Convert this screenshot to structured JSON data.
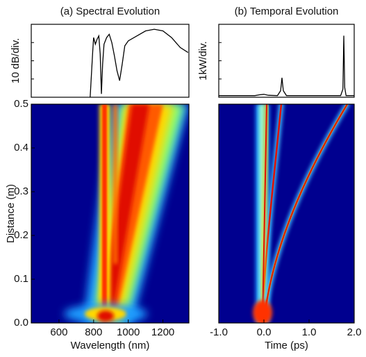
{
  "chart_data": [
    {
      "type": "line",
      "title": "(a) Spectral Evolution",
      "ylabel": "10 dB/div.",
      "x": [
        780,
        795,
        800,
        810,
        820,
        830,
        838,
        845,
        852,
        860,
        875,
        890,
        905,
        920,
        935,
        950,
        965,
        980,
        1000,
        1050,
        1100,
        1150,
        1200,
        1250,
        1300,
        1345
      ],
      "series": [
        {
          "name": "spectrum",
          "color": "#000000",
          "values": [
            -40,
            -12,
            -4,
            -8,
            -5,
            -3,
            -14,
            -38,
            -20,
            -8,
            -4,
            -2,
            -7,
            -15,
            -24,
            -30,
            -20,
            -9,
            -6,
            -3,
            0,
            1,
            0,
            -4,
            -10,
            -13
          ]
        }
      ],
      "xlim": [
        440,
        1350
      ],
      "ylim": [
        -40,
        4
      ]
    },
    {
      "type": "heatmap",
      "xlabel": "Wavelength (nm)",
      "ylabel": "Distance (m)",
      "xlim": [
        440,
        1350
      ],
      "xticks": [
        600,
        800,
        1000,
        1200
      ],
      "ylim": [
        0,
        0.5
      ],
      "yticks": [
        {
          "value": 0,
          "label": "0.0"
        },
        0.1,
        0.2,
        0.3,
        0.4,
        0.5
      ]
    },
    {
      "type": "line",
      "title": "(b) Temporal Evolution",
      "ylabel": "1kW/div.",
      "x": [
        -1,
        -0.2,
        -0.1,
        0,
        0.1,
        0.3,
        0.37,
        0.4,
        0.43,
        0.5,
        1.7,
        1.75,
        1.77,
        1.79,
        1.82,
        2
      ],
      "series": [
        {
          "name": "power",
          "color": "#000000",
          "values": [
            0,
            0,
            0.05,
            0.08,
            0.02,
            0,
            0.3,
            1.1,
            0.3,
            0,
            0,
            0.4,
            3.7,
            0.5,
            0,
            0
          ]
        }
      ],
      "xlim": [
        -1,
        2
      ],
      "ylim": [
        -0.1,
        4.4
      ]
    },
    {
      "type": "heatmap",
      "xlabel": "Time (ps)",
      "xlim": [
        -1,
        2
      ],
      "xticks": [
        {
          "value": -1,
          "label": "-1.0"
        },
        {
          "value": 0,
          "label": "0.0"
        },
        {
          "value": 1,
          "label": "1.0"
        },
        {
          "value": 2,
          "label": "2.0"
        }
      ],
      "ylim": [
        0,
        0.5
      ]
    }
  ]
}
